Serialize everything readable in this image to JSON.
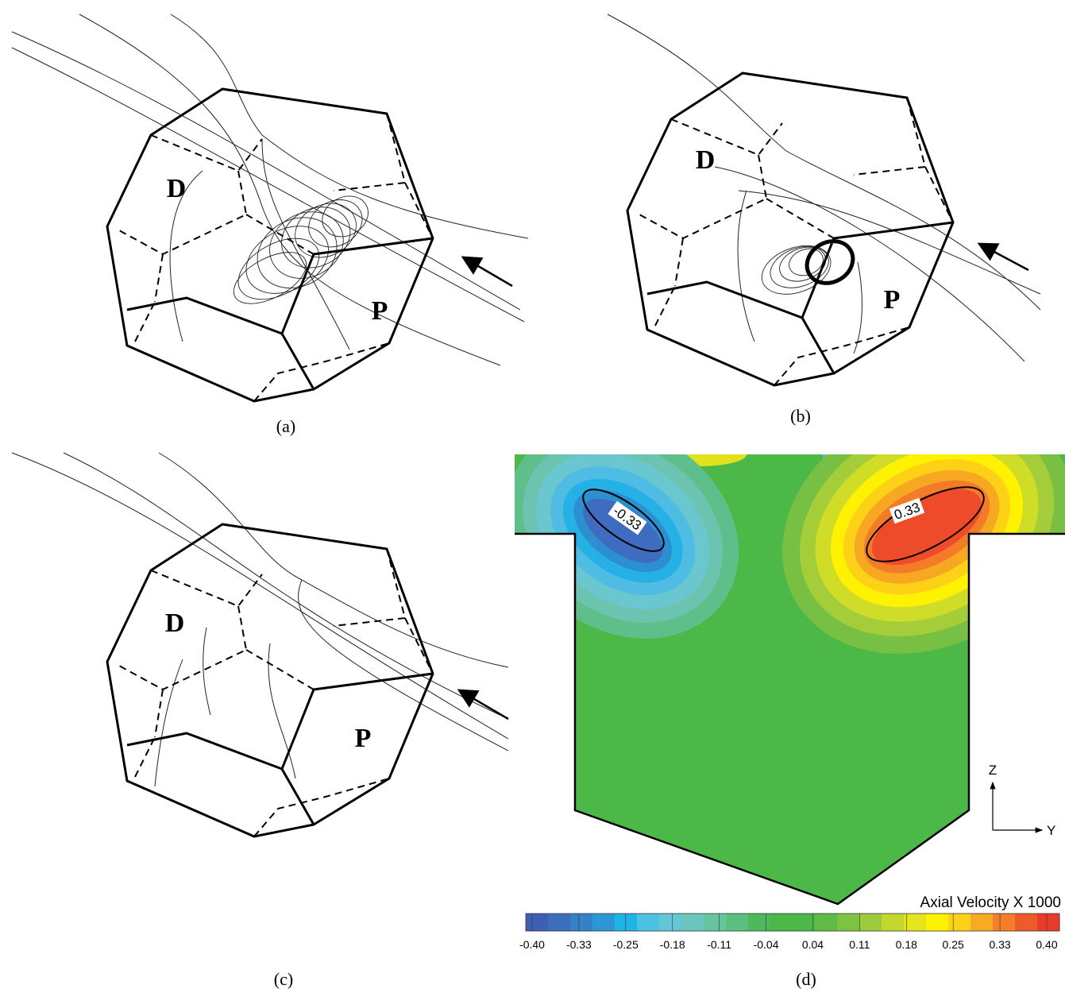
{
  "panels": [
    {
      "caption": "(a)",
      "labels": [
        "D",
        "P"
      ]
    },
    {
      "caption": "(b)",
      "labels": [
        "D",
        "P"
      ]
    },
    {
      "caption": "(c)",
      "labels": [
        "D",
        "P"
      ]
    },
    {
      "caption": "(d)",
      "contour_labels": [
        "-0.33",
        "0.33"
      ],
      "axes": [
        "Z",
        "Y"
      ],
      "colorbar": {
        "title": "Axial Velocity X 1000",
        "ticks": [
          "-0.40",
          "-0.33",
          "-0.25",
          "-0.18",
          "-0.11",
          "-0.04",
          "0.04",
          "0.11",
          "0.18",
          "0.25",
          "0.33",
          "0.40"
        ]
      }
    }
  ]
}
